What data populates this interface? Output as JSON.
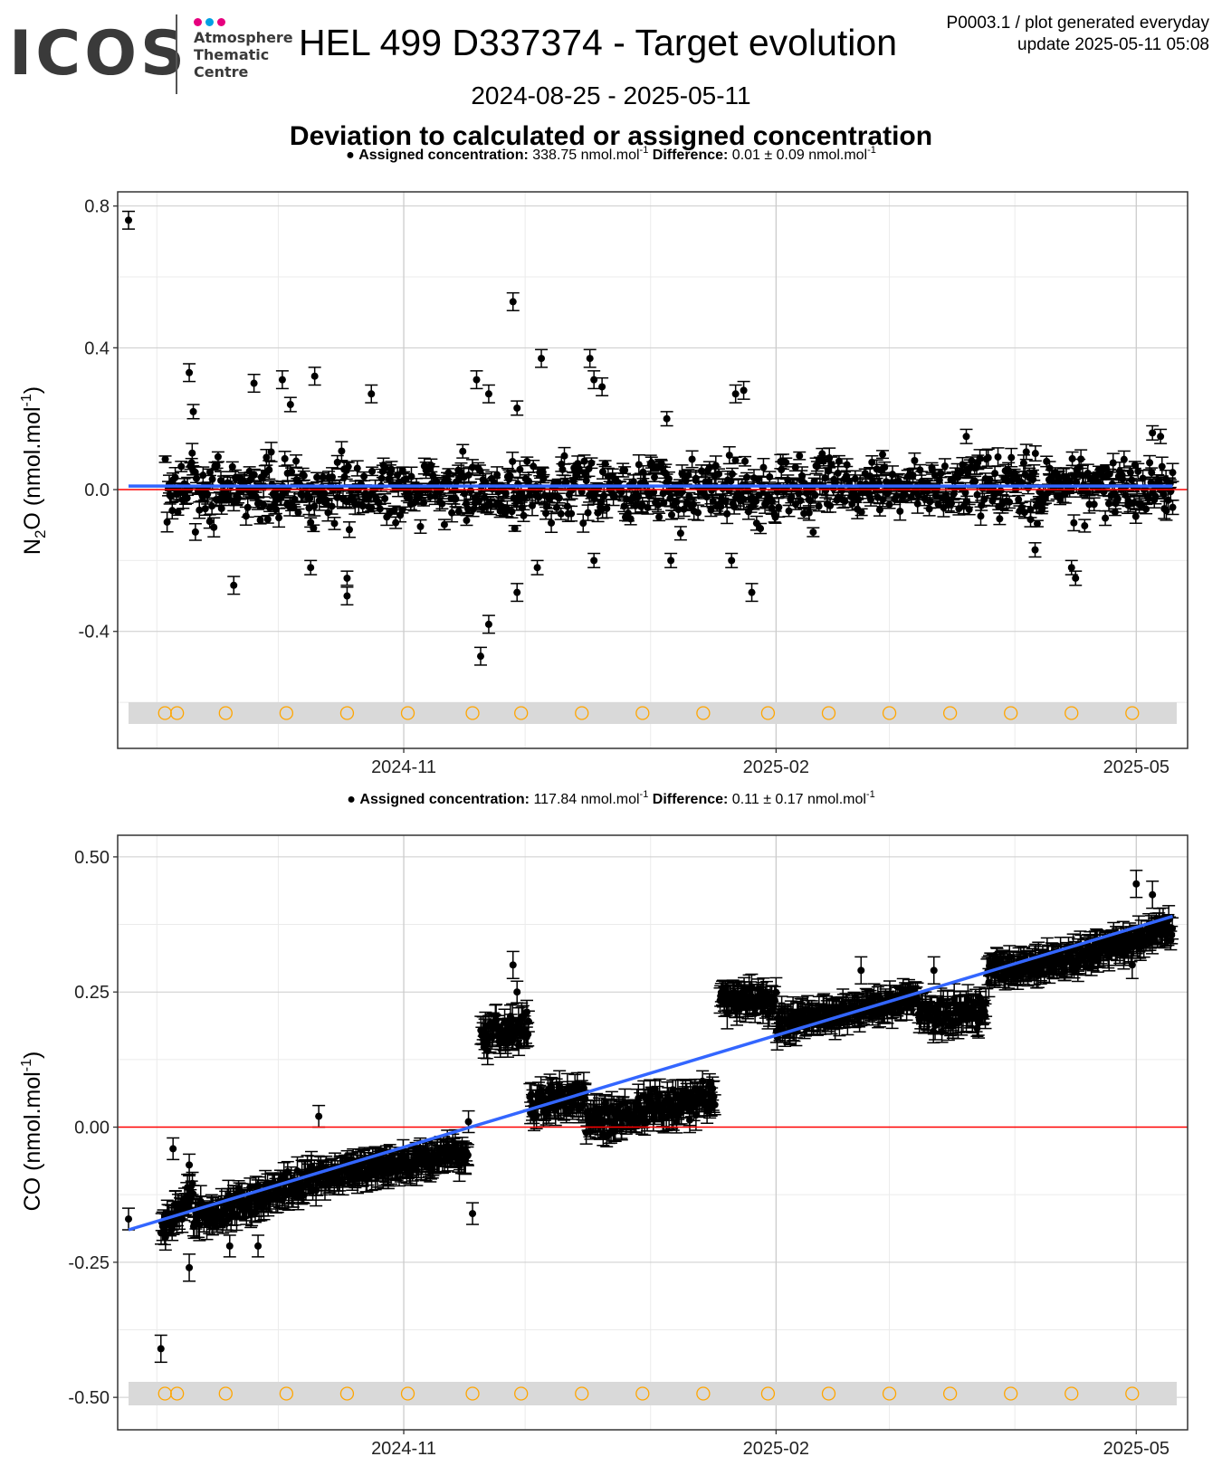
{
  "header": {
    "logo_word": "ICOS",
    "logo_sub": "Atmosphere\nThematic\nCentre",
    "logo_dot_colors": [
      "#e6007e",
      "#00a0e3",
      "#e6007e"
    ],
    "title": "HEL 499 D337374 - Target evolution",
    "meta_line1": "P0003.1 / plot generated everyday",
    "meta_line2": "update  2025-05-11 05:08",
    "date_range": "2024-08-25 - 2025-05-11",
    "subtitle": "Deviation to calculated or assigned concentration"
  },
  "chart_data": [
    {
      "type": "scatter",
      "panel": "N2O",
      "ylabel_base": "N",
      "ylabel_sub": "2",
      "ylabel_rest": "O (nmol.mol",
      "ylabel_sup": "-1",
      "ylabel_close": ")",
      "legend": {
        "assigned_label": "Assigned concentration:",
        "assigned_value": "338.75 nmol.mol",
        "diff_label": "Difference:",
        "diff_value": "0.01 ± 0.09 nmol.mol",
        "unit_sup": "-1"
      },
      "ylim": [
        -0.73,
        0.84
      ],
      "yticks": [
        -0.4,
        0.0,
        0.4,
        0.8
      ],
      "ytick_labels": [
        "-0.4",
        "0.0",
        "0.4",
        "0.8"
      ],
      "xticks": [
        "2024-11-01",
        "2025-02-01",
        "2025-05-01"
      ],
      "xtick_labels": [
        "2024-11",
        "2025-02",
        "2025-05"
      ],
      "xlim": [
        "2024-08-25",
        "2025-05-11"
      ],
      "reference_line": 0,
      "trend": {
        "start": [
          "2024-08-25",
          0.01
        ],
        "end": [
          "2025-05-10",
          0.01
        ]
      },
      "outliers": [
        [
          "2024-08-25",
          0.76
        ],
        [
          "2024-09-09",
          0.33
        ],
        [
          "2024-09-10",
          0.22
        ],
        [
          "2024-09-20",
          -0.27
        ],
        [
          "2024-09-25",
          0.3
        ],
        [
          "2024-10-02",
          0.31
        ],
        [
          "2024-10-04",
          0.24
        ],
        [
          "2024-10-09",
          -0.22
        ],
        [
          "2024-10-10",
          0.32
        ],
        [
          "2024-10-18",
          -0.25
        ],
        [
          "2024-10-18",
          -0.3
        ],
        [
          "2024-10-24",
          0.27
        ],
        [
          "2024-11-20",
          -0.47
        ],
        [
          "2024-11-22",
          -0.38
        ],
        [
          "2024-11-19",
          0.31
        ],
        [
          "2024-11-22",
          0.27
        ],
        [
          "2024-11-28",
          0.53
        ],
        [
          "2024-11-29",
          0.23
        ],
        [
          "2024-11-29",
          -0.29
        ],
        [
          "2024-12-05",
          0.37
        ],
        [
          "2024-12-04",
          -0.22
        ],
        [
          "2024-12-17",
          0.37
        ],
        [
          "2024-12-18",
          0.31
        ],
        [
          "2024-12-20",
          0.29
        ],
        [
          "2024-12-18",
          -0.2
        ],
        [
          "2025-01-05",
          0.2
        ],
        [
          "2025-01-06",
          -0.2
        ],
        [
          "2025-01-22",
          0.27
        ],
        [
          "2025-01-24",
          0.28
        ],
        [
          "2025-01-21",
          -0.2
        ],
        [
          "2025-01-26",
          -0.29
        ],
        [
          "2025-04-06",
          -0.17
        ],
        [
          "2025-04-15",
          -0.22
        ],
        [
          "2025-04-16",
          -0.25
        ],
        [
          "2025-03-20",
          0.15
        ],
        [
          "2025-05-05",
          0.16
        ],
        [
          "2025-05-07",
          0.15
        ],
        [
          "2025-05-10",
          -0.05
        ]
      ],
      "calibration_markers": [
        "2024-09-03",
        "2024-09-06",
        "2024-09-18",
        "2024-10-03",
        "2024-10-18",
        "2024-11-02",
        "2024-11-18",
        "2024-11-30",
        "2024-12-15",
        "2024-12-30",
        "2025-01-14",
        "2025-01-30",
        "2025-02-14",
        "2025-03-01",
        "2025-03-16",
        "2025-03-31",
        "2025-04-15",
        "2025-04-30"
      ],
      "grid": true
    },
    {
      "type": "scatter",
      "panel": "CO",
      "ylabel_base": "CO (nmol.mol",
      "ylabel_sub": "",
      "ylabel_rest": "",
      "ylabel_sup": "-1",
      "ylabel_close": ")",
      "legend": {
        "assigned_label": "Assigned concentration:",
        "assigned_value": "117.84 nmol.mol",
        "diff_label": "Difference:",
        "diff_value": "0.11 ± 0.17 nmol.mol",
        "unit_sup": "-1"
      },
      "ylim": [
        -0.56,
        0.54
      ],
      "yticks": [
        -0.5,
        -0.25,
        0.0,
        0.25,
        0.5
      ],
      "ytick_labels": [
        "-0.50",
        "-0.25",
        "0.00",
        "0.25",
        "0.50"
      ],
      "xticks": [
        "2024-11-01",
        "2025-02-01",
        "2025-05-01"
      ],
      "xtick_labels": [
        "2024-11",
        "2025-02",
        "2025-05"
      ],
      "xlim": [
        "2024-08-25",
        "2025-05-11"
      ],
      "reference_line": 0,
      "trend": {
        "start": [
          "2024-08-25",
          -0.19
        ],
        "end": [
          "2025-05-10",
          0.39
        ]
      },
      "outliers": [
        [
          "2024-08-25",
          -0.17
        ],
        [
          "2024-09-02",
          -0.41
        ],
        [
          "2024-09-05",
          -0.04
        ],
        [
          "2024-09-09",
          -0.26
        ],
        [
          "2024-09-09",
          -0.07
        ],
        [
          "2024-09-19",
          -0.22
        ],
        [
          "2024-09-26",
          -0.22
        ],
        [
          "2024-10-11",
          0.02
        ],
        [
          "2024-11-18",
          -0.16
        ],
        [
          "2024-11-17",
          0.01
        ],
        [
          "2024-11-28",
          0.3
        ],
        [
          "2024-11-29",
          0.25
        ],
        [
          "2025-02-22",
          0.29
        ],
        [
          "2025-03-12",
          0.29
        ],
        [
          "2025-05-01",
          0.45
        ],
        [
          "2025-05-05",
          0.43
        ],
        [
          "2025-04-30",
          0.3
        ]
      ],
      "segments": [
        [
          "2024-09-02",
          "2024-09-10",
          -0.19,
          -0.12,
          0.035
        ],
        [
          "2024-09-10",
          "2024-10-12",
          -0.17,
          -0.09,
          0.035
        ],
        [
          "2024-10-12",
          "2024-11-17",
          -0.09,
          -0.05,
          0.025
        ],
        [
          "2024-11-20",
          "2024-12-02",
          0.17,
          0.19,
          0.035
        ],
        [
          "2024-12-02",
          "2024-12-16",
          0.04,
          0.06,
          0.03
        ],
        [
          "2024-12-16",
          "2025-01-03",
          0.0,
          0.04,
          0.035
        ],
        [
          "2025-01-03",
          "2025-01-17",
          0.03,
          0.06,
          0.035
        ],
        [
          "2025-01-18",
          "2025-02-01",
          0.24,
          0.23,
          0.03
        ],
        [
          "2025-02-01",
          "2025-03-08",
          0.19,
          0.24,
          0.025
        ],
        [
          "2025-03-08",
          "2025-03-25",
          0.21,
          0.21,
          0.035
        ],
        [
          "2025-03-25",
          "2025-04-15",
          0.29,
          0.31,
          0.025
        ],
        [
          "2025-04-15",
          "2025-05-10",
          0.31,
          0.37,
          0.025
        ]
      ],
      "calibration_markers": [
        "2024-09-03",
        "2024-09-06",
        "2024-09-18",
        "2024-10-03",
        "2024-10-18",
        "2024-11-02",
        "2024-11-18",
        "2024-11-30",
        "2024-12-15",
        "2024-12-30",
        "2025-01-14",
        "2025-01-30",
        "2025-02-14",
        "2025-03-01",
        "2025-03-16",
        "2025-03-31",
        "2025-04-15",
        "2025-04-30"
      ],
      "grid": true
    }
  ],
  "colors": {
    "point": "#000000",
    "trend": "#3366ff",
    "reference": "#ff0000",
    "calibration_marker": "#ffa500",
    "calibration_band": "#d9d9d9",
    "grid_major": "#cccccc",
    "grid_minor": "#ebebeb"
  }
}
